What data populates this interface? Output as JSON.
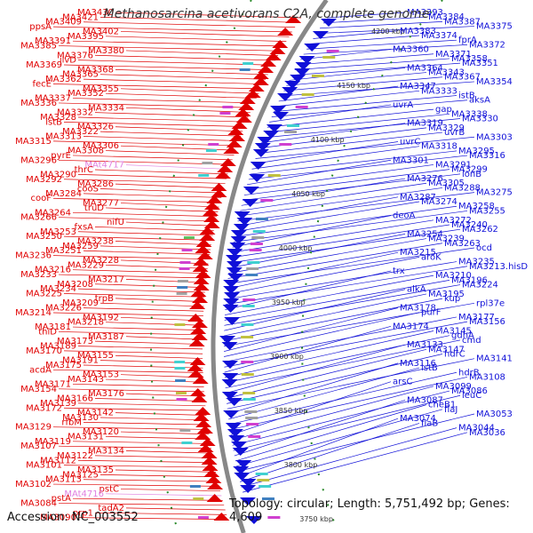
{
  "title": "Methanosarcina acetivorans C2A, complete genome",
  "footer": {
    "accession": "Accession: NC_003552",
    "topology": "Topology: circular; Length: 5,751,492 bp; Genes: 4,609"
  },
  "colors": {
    "forward": "#e00000",
    "reverse": "#1010d8",
    "pseudo": "#e080e0",
    "backbone": "#888888",
    "tick": "#2a8a2a"
  },
  "ticks": [
    "4200 kbp",
    "4150 kbp",
    "4100 kbp",
    "4050 kbp",
    "4000 kbp",
    "3950 kbp",
    "3900 kbp",
    "3850 kbp",
    "3800 kbp",
    "3750 kbp"
  ],
  "left_labels": [
    {
      "text": "MA3430"
    },
    {
      "text": "MA3421"
    },
    {
      "text": "MA3409"
    },
    {
      "text": "ppsA"
    },
    {
      "text": "MA3402"
    },
    {
      "text": "MA3395"
    },
    {
      "text": "MA3391"
    },
    {
      "text": "MA3385"
    },
    {
      "text": "MA3380"
    },
    {
      "text": "MA3376"
    },
    {
      "text": "ilvD"
    },
    {
      "text": "MA3369"
    },
    {
      "text": "MA3368"
    },
    {
      "text": "MA3365"
    },
    {
      "text": "MA3362"
    },
    {
      "text": "fecE"
    },
    {
      "text": "MA3355"
    },
    {
      "text": "MA3352"
    },
    {
      "text": "MA3337"
    },
    {
      "text": "MA3336"
    },
    {
      "text": "MA3334"
    },
    {
      "text": "MA3332"
    },
    {
      "text": "MA3328"
    },
    {
      "text": "istB"
    },
    {
      "text": "MA3326"
    },
    {
      "text": "MA3322"
    },
    {
      "text": "MA3313"
    },
    {
      "text": "MA3315"
    },
    {
      "text": "MA3306"
    },
    {
      "text": "MA3308"
    },
    {
      "text": "pyrE"
    },
    {
      "text": "MA3296"
    },
    {
      "text": "MAt4717",
      "pseudo": true
    },
    {
      "text": "thrC"
    },
    {
      "text": "MA3290"
    },
    {
      "text": "MA3292"
    },
    {
      "text": "MA3286"
    },
    {
      "text": "cooS"
    },
    {
      "text": "MA3284"
    },
    {
      "text": "cooF"
    },
    {
      "text": "MA3277"
    },
    {
      "text": "truD"
    },
    {
      "text": "MA3264"
    },
    {
      "text": "MA3266"
    },
    {
      "text": "nifU"
    },
    {
      "text": "fxsA"
    },
    {
      "text": "MA3253"
    },
    {
      "text": "MA3250"
    },
    {
      "text": "MA3238"
    },
    {
      "text": "MA3259"
    },
    {
      "text": "MA3251"
    },
    {
      "text": "MA3236"
    },
    {
      "text": "MA3228"
    },
    {
      "text": "MA3229"
    },
    {
      "text": "MA3216"
    },
    {
      "text": "MA3233"
    },
    {
      "text": "MA3217"
    },
    {
      "text": "MA3208"
    },
    {
      "text": "MA3234"
    },
    {
      "text": "MA3225"
    },
    {
      "text": "trpB"
    },
    {
      "text": "MA3209"
    },
    {
      "text": "MA3226"
    },
    {
      "text": "MA3214"
    },
    {
      "text": "MA3192"
    },
    {
      "text": "MA3218"
    },
    {
      "text": "MA3181"
    },
    {
      "text": "thiD"
    },
    {
      "text": "MA3187"
    },
    {
      "text": "MA3173"
    },
    {
      "text": "MA3189"
    },
    {
      "text": "MA3170"
    },
    {
      "text": "MA3155"
    },
    {
      "text": "MA3191"
    },
    {
      "text": "MA3175"
    },
    {
      "text": "acdA"
    },
    {
      "text": "MA3153"
    },
    {
      "text": "MA3143"
    },
    {
      "text": "MA3171"
    },
    {
      "text": "MA3154"
    },
    {
      "text": "MA3176"
    },
    {
      "text": "MA3166"
    },
    {
      "text": "MA3139"
    },
    {
      "text": "MA3172"
    },
    {
      "text": "MA3142"
    },
    {
      "text": "MA3130"
    },
    {
      "text": "rfbM"
    },
    {
      "text": "MA3129"
    },
    {
      "text": "MA3120"
    },
    {
      "text": "MA3131"
    },
    {
      "text": "MA3119"
    },
    {
      "text": "MA3107"
    },
    {
      "text": "MA3134"
    },
    {
      "text": "MA3122"
    },
    {
      "text": "MA3112"
    },
    {
      "text": "MA3101"
    },
    {
      "text": "MA3135"
    },
    {
      "text": "MA3125"
    },
    {
      "text": "MA3113"
    },
    {
      "text": "MA3102"
    },
    {
      "text": "pstC"
    },
    {
      "text": "MAt4716",
      "pseudo": true
    },
    {
      "text": "pstA"
    },
    {
      "text": "MA3084"
    },
    {
      "text": "tadA2"
    },
    {
      "text": "prp1"
    },
    {
      "text": "MA3090"
    }
  ],
  "right_labels": [
    {
      "text": "MA3393"
    },
    {
      "text": "MA3384"
    },
    {
      "text": "MA3387"
    },
    {
      "text": "MA3375"
    },
    {
      "text": "MA3383"
    },
    {
      "text": "MA3374"
    },
    {
      "text": "fprA"
    },
    {
      "text": "MA3372"
    },
    {
      "text": "MA3360"
    },
    {
      "text": "MA3371"
    },
    {
      "text": "MA3358"
    },
    {
      "text": "MA3351"
    },
    {
      "text": "MA3364"
    },
    {
      "text": "MA3343"
    },
    {
      "text": "MA3367"
    },
    {
      "text": "MA3354"
    },
    {
      "text": "MA3347"
    },
    {
      "text": "MA3333"
    },
    {
      "text": "istB"
    },
    {
      "text": "aksA"
    },
    {
      "text": "uvrA"
    },
    {
      "text": "gap"
    },
    {
      "text": "MA3338"
    },
    {
      "text": "MA3330"
    },
    {
      "text": "MA3319"
    },
    {
      "text": "MA3329"
    },
    {
      "text": "uvrB"
    },
    {
      "text": "MA3303"
    },
    {
      "text": "uvrC"
    },
    {
      "text": "MA3318"
    },
    {
      "text": "MA3295"
    },
    {
      "text": "MA3316"
    },
    {
      "text": "MA3301"
    },
    {
      "text": "MA3291"
    },
    {
      "text": "MA3299"
    },
    {
      "text": "lonB"
    },
    {
      "text": "MA3276"
    },
    {
      "text": "MA3305"
    },
    {
      "text": "MA3288"
    },
    {
      "text": "MA3275"
    },
    {
      "text": "MA3287"
    },
    {
      "text": "MA3274"
    },
    {
      "text": "MA3258"
    },
    {
      "text": "MA3255"
    },
    {
      "text": "deoA"
    },
    {
      "text": "MA3272"
    },
    {
      "text": "MA3240"
    },
    {
      "text": "MA3262"
    },
    {
      "text": "MA3254"
    },
    {
      "text": "MA3239"
    },
    {
      "text": "MA3263"
    },
    {
      "text": "ocd"
    },
    {
      "text": "MA3215"
    },
    {
      "text": "aroK"
    },
    {
      "text": "MA3235"
    },
    {
      "text": "MA3213.hisD"
    },
    {
      "text": "trx"
    },
    {
      "text": "MA3210"
    },
    {
      "text": "MA3196"
    },
    {
      "text": "MA3224"
    },
    {
      "text": "alkA"
    },
    {
      "text": "MA3195"
    },
    {
      "text": "kup"
    },
    {
      "text": "rpl37e"
    },
    {
      "text": "MA3178"
    },
    {
      "text": "purF"
    },
    {
      "text": "MA3177"
    },
    {
      "text": "MA3156"
    },
    {
      "text": "MA3174"
    },
    {
      "text": "MA3145"
    },
    {
      "text": "gdhA"
    },
    {
      "text": "cmd"
    },
    {
      "text": "MA3133"
    },
    {
      "text": "MA3147"
    },
    {
      "text": "hdrC"
    },
    {
      "text": "MA3141"
    },
    {
      "text": "MA3116"
    },
    {
      "text": "istB"
    },
    {
      "text": "hdrB"
    },
    {
      "text": "MA3108"
    },
    {
      "text": "arsC"
    },
    {
      "text": "MA3099"
    },
    {
      "text": "MA3086"
    },
    {
      "text": "leuC"
    },
    {
      "text": "MA3087"
    },
    {
      "text": "cheB1"
    },
    {
      "text": "flaJ"
    },
    {
      "text": "MA3053"
    },
    {
      "text": "MA3074"
    },
    {
      "text": "flaB"
    },
    {
      "text": "MA3044"
    },
    {
      "text": "MA3036"
    }
  ]
}
